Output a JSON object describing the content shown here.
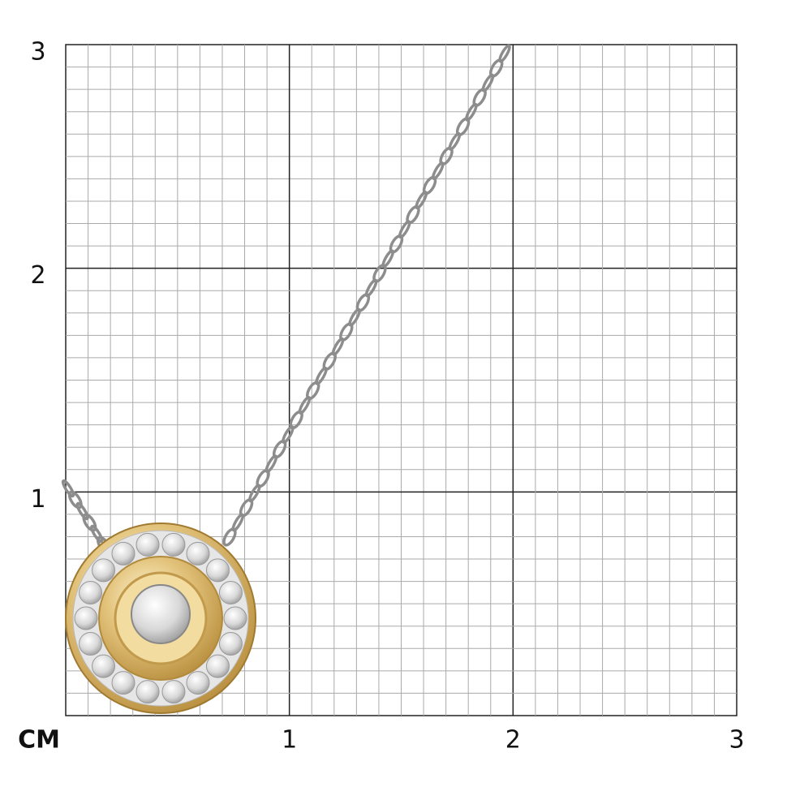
{
  "scale": {
    "unit": "СМ",
    "x_labels": [
      "1",
      "2",
      "3"
    ],
    "y_labels": [
      "3",
      "2",
      "1"
    ]
  }
}
